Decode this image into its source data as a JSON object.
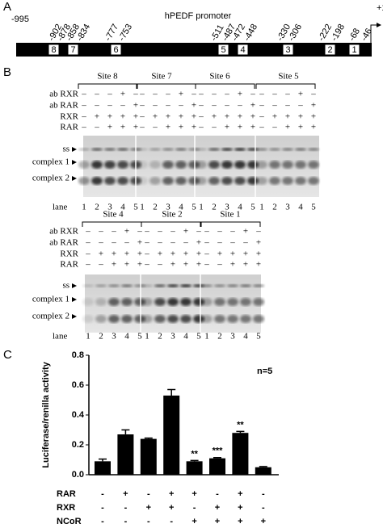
{
  "panel_a": {
    "label": "A",
    "start": "-995",
    "title": "hPEDF promoter",
    "end": "+1",
    "positions": [
      "-902",
      "-878",
      "-858",
      "-834",
      "-777",
      "-753",
      "-511",
      "-487",
      "-472",
      "-448",
      "-330",
      "-306",
      "-222",
      "-198",
      "-68",
      "-46"
    ],
    "sites": [
      "8",
      "7",
      "6",
      "5",
      "4",
      "3",
      "2",
      "1"
    ]
  },
  "panel_b": {
    "label": "B",
    "gels": [
      {
        "sites": [
          "Site 8",
          "Site 7",
          "Site 6",
          "Site 5"
        ],
        "rows": [
          {
            "label": "ab RXR",
            "signs": [
              [
                "–",
                "–",
                "–",
                "+",
                "–"
              ],
              [
                "–",
                "–",
                "–",
                "+",
                "–"
              ],
              [
                "–",
                "–",
                "–",
                "+",
                "–"
              ],
              [
                "–",
                "–",
                "–",
                "+",
                "–"
              ]
            ]
          },
          {
            "label": "ab RAR",
            "signs": [
              [
                "–",
                "–",
                "–",
                "–",
                "+"
              ],
              [
                "–",
                "–",
                "–",
                "–",
                "+"
              ],
              [
                "–",
                "–",
                "–",
                "–",
                "+"
              ],
              [
                "–",
                "–",
                "–",
                "–",
                "+"
              ]
            ]
          },
          {
            "label": "RXR",
            "signs": [
              [
                "–",
                "+",
                "+",
                "+",
                "+"
              ],
              [
                "–",
                "+",
                "+",
                "+",
                "+"
              ],
              [
                "–",
                "+",
                "+",
                "+",
                "+"
              ],
              [
                "–",
                "+",
                "+",
                "+",
                "+"
              ]
            ]
          },
          {
            "label": "RAR",
            "signs": [
              [
                "–",
                "–",
                "+",
                "+",
                "+"
              ],
              [
                "–",
                "–",
                "+",
                "+",
                "+"
              ],
              [
                "–",
                "–",
                "+",
                "+",
                "+"
              ],
              [
                "–",
                "–",
                "+",
                "+",
                "+"
              ]
            ]
          }
        ],
        "bands": [
          "ss",
          "complex 1",
          "complex 2"
        ],
        "lane_label": "lane",
        "lanes": [
          [
            1,
            2,
            3,
            4,
            5
          ],
          [
            1,
            2,
            3,
            4,
            5
          ],
          [
            1,
            2,
            3,
            4,
            5
          ],
          [
            1,
            2,
            3,
            4,
            5
          ]
        ]
      },
      {
        "sites": [
          "Site 4",
          "Site 2",
          "Site 1"
        ],
        "rows": [
          {
            "label": "ab RXR",
            "signs": [
              [
                "–",
                "–",
                "–",
                "+",
                "–"
              ],
              [
                "–",
                "–",
                "–",
                "+",
                "–"
              ],
              [
                "–",
                "–",
                "–",
                "+",
                "–"
              ]
            ]
          },
          {
            "label": "ab RAR",
            "signs": [
              [
                "–",
                "–",
                "–",
                "–",
                "+"
              ],
              [
                "–",
                "–",
                "–",
                "–",
                "+"
              ],
              [
                "–",
                "–",
                "–",
                "–",
                "+"
              ]
            ]
          },
          {
            "label": "RXR",
            "signs": [
              [
                "–",
                "+",
                "+",
                "+",
                "+"
              ],
              [
                "–",
                "+",
                "+",
                "+",
                "+"
              ],
              [
                "–",
                "+",
                "+",
                "+",
                "+"
              ]
            ]
          },
          {
            "label": "RAR",
            "signs": [
              [
                "–",
                "–",
                "+",
                "+",
                "+"
              ],
              [
                "–",
                "–",
                "+",
                "+",
                "+"
              ],
              [
                "–",
                "–",
                "+",
                "+",
                "+"
              ]
            ]
          }
        ],
        "bands": [
          "ss",
          "complex 1",
          "complex 2"
        ],
        "lane_label": "lane",
        "lanes": [
          [
            1,
            2,
            3,
            4,
            5
          ],
          [
            1,
            2,
            3,
            4,
            5
          ],
          [
            1,
            2,
            3,
            4,
            5
          ]
        ]
      }
    ]
  },
  "chart_data": {
    "type": "bar",
    "panel_label": "C",
    "y_label": "Luciferase/renilla activity",
    "note": "n=5",
    "values": [
      0.09,
      0.27,
      0.24,
      0.53,
      0.09,
      0.11,
      0.28,
      0.05
    ],
    "errors": [
      0.015,
      0.03,
      0.005,
      0.04,
      0.005,
      0.005,
      0.01,
      0.005
    ],
    "annotations": [
      null,
      null,
      null,
      null,
      "**",
      "***",
      "**",
      null
    ],
    "color": "#000000",
    "ylim": [
      0,
      0.8
    ],
    "yticks": [
      {
        "value": 0,
        "label": "0.0"
      },
      0.2,
      0.4,
      0.6,
      0.8
    ],
    "conditions": [
      {
        "name": "RAR",
        "signs": [
          "-",
          "+",
          "-",
          "+",
          "+",
          "-",
          "+",
          "-"
        ]
      },
      {
        "name": "RXR",
        "signs": [
          "-",
          "-",
          "+",
          "+",
          "-",
          "+",
          "+",
          "-"
        ]
      },
      {
        "name": "NCoR",
        "signs": [
          "-",
          "-",
          "-",
          "-",
          "+",
          "+",
          "+",
          "+"
        ]
      }
    ]
  }
}
